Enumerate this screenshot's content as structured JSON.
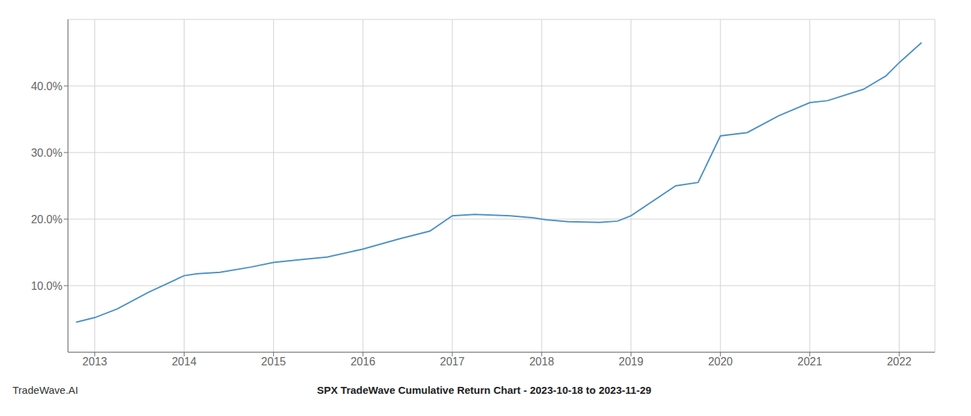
{
  "chart_data": {
    "type": "line",
    "title": "SPX TradeWave Cumulative Return Chart - 2023-10-18 to 2023-11-29",
    "annotations": [
      "TradeWave.AI"
    ],
    "x": [
      2012.79,
      2013.0,
      2013.25,
      2013.6,
      2014.0,
      2014.15,
      2014.4,
      2014.75,
      2015.0,
      2015.3,
      2015.6,
      2016.0,
      2016.4,
      2016.75,
      2017.0,
      2017.25,
      2017.65,
      2017.9,
      2018.05,
      2018.3,
      2018.65,
      2018.85,
      2019.0,
      2019.5,
      2019.75,
      2020.0,
      2020.3,
      2020.65,
      2021.0,
      2021.2,
      2021.6,
      2021.85,
      2022.0,
      2022.25
    ],
    "values": [
      4.5,
      5.2,
      6.5,
      9.0,
      11.5,
      11.8,
      12.0,
      12.8,
      13.5,
      13.9,
      14.3,
      15.5,
      17.0,
      18.2,
      20.5,
      20.7,
      20.5,
      20.2,
      19.9,
      19.6,
      19.5,
      19.7,
      20.5,
      25.0,
      25.5,
      32.5,
      33.0,
      35.5,
      37.5,
      37.8,
      39.5,
      41.5,
      43.5,
      46.5
    ],
    "color": "#4a90c4",
    "xlim": [
      2012.7,
      2022.4
    ],
    "ylim": [
      0,
      50
    ],
    "xticks": [
      2013,
      2014,
      2015,
      2016,
      2017,
      2018,
      2019,
      2020,
      2021,
      2022
    ],
    "yticks": [
      {
        "value": 10.0,
        "label": "10.0%"
      },
      {
        "value": 20.0,
        "label": "20.0%"
      },
      {
        "value": 30.0,
        "label": "30.0%"
      },
      {
        "value": 40.0,
        "label": "40.0%"
      }
    ],
    "grid": true
  }
}
